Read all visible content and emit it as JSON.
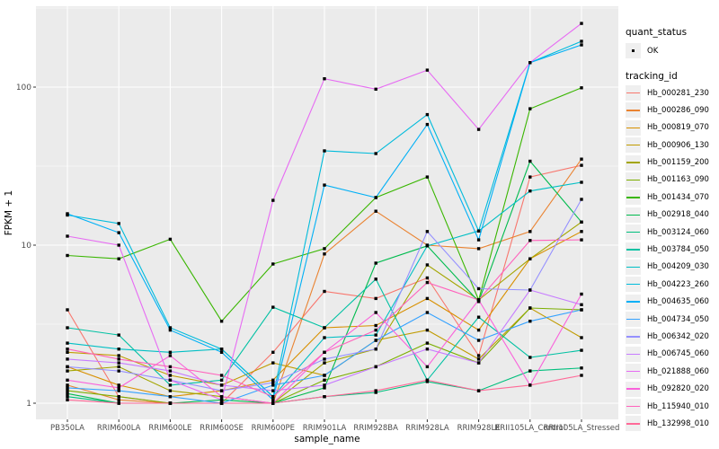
{
  "figure": {
    "panel_background": "#EBEBEB",
    "grid_color": "#FFFFFF",
    "axis_text_color": "#4D4D4D",
    "tick_color": "#333333",
    "point_color": "#000000"
  },
  "legend": {
    "quant_title": "quant_status",
    "quant_items": [
      {
        "label": "OK"
      }
    ],
    "tracking_title": "tracking_id"
  },
  "chart_data": {
    "type": "line",
    "title": "",
    "xlabel": "sample_name",
    "ylabel": "FPKM + 1",
    "y_scale": "log10",
    "ylim": [
      0.94,
      320
    ],
    "y_ticks": [
      1,
      10,
      100
    ],
    "y_tick_labels": [
      "1",
      "10",
      "100"
    ],
    "grid": true,
    "legend_position": "right",
    "point_shape": "small black square",
    "categories": [
      "PB350LA",
      "RRIM600LA",
      "RRIM600LE",
      "RRIM600SE",
      "RRIM600PE",
      "RRIM901LA",
      "RRIM928BA",
      "RRIM928LA",
      "RRIM928LE",
      "RRII105LA_Control",
      "RRII105LA_Stressed"
    ],
    "series": [
      {
        "name": "Hb_000281_230",
        "color": "#F8766D",
        "values": [
          3.9,
          1.1,
          1.0,
          1.0,
          2.1,
          5.1,
          4.6,
          6.2,
          2.0,
          27.0,
          32.0
        ]
      },
      {
        "name": "Hb_000286_090",
        "color": "#EA8331",
        "values": [
          1.3,
          1.05,
          1.0,
          1.0,
          1.0,
          8.8,
          16.4,
          10.0,
          9.5,
          12.2,
          35.0
        ]
      },
      {
        "name": "Hb_000819_070",
        "color": "#D89000",
        "values": [
          1.7,
          1.3,
          1.1,
          1.2,
          1.4,
          3.0,
          3.1,
          4.6,
          2.9,
          8.2,
          12.2
        ]
      },
      {
        "name": "Hb_000906_130",
        "color": "#C09B00",
        "values": [
          2.1,
          2.0,
          1.5,
          1.3,
          1.8,
          1.5,
          2.5,
          2.9,
          1.9,
          4.0,
          2.6
        ]
      },
      {
        "name": "Hb_001159_200",
        "color": "#A3A500",
        "values": [
          1.6,
          1.7,
          1.2,
          1.1,
          1.0,
          1.8,
          2.2,
          7.5,
          4.5,
          8.2,
          14.0
        ]
      },
      {
        "name": "Hb_001163_090",
        "color": "#7CAE00",
        "values": [
          1.2,
          1.1,
          1.0,
          1.0,
          1.0,
          1.4,
          1.7,
          2.4,
          1.8,
          4.0,
          3.9
        ]
      },
      {
        "name": "Hb_001434_070",
        "color": "#39B600",
        "values": [
          8.6,
          8.2,
          10.9,
          3.3,
          7.6,
          9.5,
          20.0,
          27.0,
          4.5,
          73.0,
          99.0
        ]
      },
      {
        "name": "Hb_002918_040",
        "color": "#00BB4E",
        "values": [
          1.15,
          1.0,
          1.0,
          1.05,
          1.0,
          1.25,
          7.7,
          9.9,
          4.4,
          34.0,
          14.0
        ]
      },
      {
        "name": "Hb_003124_060",
        "color": "#00BF7D",
        "values": [
          1.1,
          1.0,
          1.0,
          1.0,
          1.0,
          1.1,
          1.17,
          1.37,
          1.2,
          1.6,
          1.67
        ]
      },
      {
        "name": "Hb_003784_050",
        "color": "#00C1A3",
        "values": [
          3.0,
          2.7,
          1.3,
          1.4,
          4.05,
          3.0,
          6.1,
          1.4,
          3.5,
          1.95,
          2.16
        ]
      },
      {
        "name": "Hb_004209_030",
        "color": "#00BFC4",
        "values": [
          2.4,
          2.2,
          2.1,
          2.2,
          1.1,
          2.6,
          2.7,
          9.9,
          12.3,
          22.0,
          25.0
        ]
      },
      {
        "name": "Hb_004223_260",
        "color": "#00BBDB",
        "values": [
          15.5,
          13.7,
          3.0,
          2.2,
          1.1,
          39.5,
          38.0,
          67.0,
          12.3,
          143.0,
          195.0
        ]
      },
      {
        "name": "Hb_004635_060",
        "color": "#00B0F6",
        "values": [
          15.8,
          12.0,
          2.9,
          2.1,
          1.05,
          24.0,
          20.0,
          58.0,
          10.8,
          143.0,
          185.0
        ]
      },
      {
        "name": "Hb_004734_050",
        "color": "#35A2FF",
        "values": [
          1.25,
          1.2,
          1.1,
          1.0,
          1.3,
          1.5,
          2.5,
          3.75,
          2.5,
          3.3,
          3.9
        ]
      },
      {
        "name": "Hb_006342_020",
        "color": "#9590FF",
        "values": [
          1.7,
          1.6,
          1.4,
          1.2,
          1.35,
          1.9,
          2.2,
          12.2,
          5.3,
          5.2,
          19.5
        ]
      },
      {
        "name": "Hb_006745_060",
        "color": "#C77CFF",
        "values": [
          1.9,
          1.8,
          1.6,
          1.3,
          1.2,
          1.3,
          1.7,
          2.2,
          1.8,
          5.2,
          4.2
        ]
      },
      {
        "name": "Hb_021888_060",
        "color": "#E76BF3",
        "values": [
          11.4,
          10.0,
          1.4,
          1.05,
          19.2,
          113.0,
          97.0,
          128.0,
          54.0,
          143.0,
          253.0
        ]
      },
      {
        "name": "Hb_092820_020",
        "color": "#FA62DB",
        "values": [
          1.4,
          1.25,
          2.0,
          1.1,
          1.0,
          2.1,
          3.75,
          1.7,
          4.5,
          1.3,
          4.9
        ]
      },
      {
        "name": "Hb_115940_010",
        "color": "#FF62BC",
        "values": [
          2.2,
          1.9,
          1.7,
          1.5,
          1.1,
          2.1,
          2.9,
          5.8,
          4.5,
          10.7,
          10.8
        ]
      },
      {
        "name": "Hb_132998_010",
        "color": "#FF6A98",
        "values": [
          1.05,
          1.0,
          1.0,
          1.0,
          1.0,
          1.1,
          1.2,
          1.4,
          1.2,
          1.3,
          1.5
        ]
      }
    ]
  }
}
